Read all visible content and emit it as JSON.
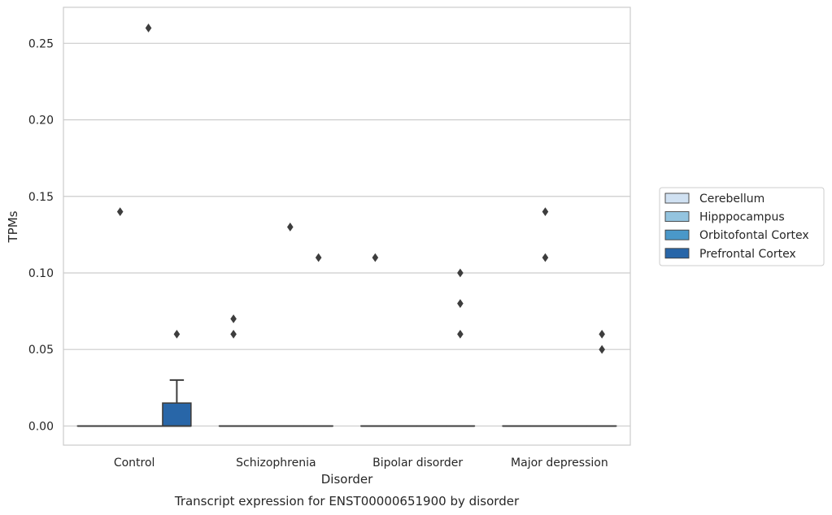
{
  "chart_data": {
    "type": "box",
    "title": "",
    "caption": "Transcript expression for ENST00000651900 by disorder",
    "xlabel": "Disorder",
    "ylabel": "TPMs",
    "ylim": [
      -0.0125,
      0.2735
    ],
    "yticks": [
      0.0,
      0.05,
      0.1,
      0.15,
      0.2,
      0.25
    ],
    "ytick_labels": [
      "0.00",
      "0.05",
      "0.10",
      "0.15",
      "0.20",
      "0.25"
    ],
    "grid": "horizontal",
    "legend_position": "right",
    "categories": [
      "Control",
      "Schizophrenia",
      "Bipolar disorder",
      "Major depression"
    ],
    "series": [
      {
        "name": "Cerebellum",
        "color": "#d0e1f2",
        "boxes": [
          {
            "q1": 0,
            "median": 0,
            "q3": 0,
            "whisker_low": 0,
            "whisker_high": 0,
            "outliers": []
          },
          {
            "q1": 0,
            "median": 0,
            "q3": 0,
            "whisker_low": 0,
            "whisker_high": 0,
            "outliers": [
              0.06,
              0.07
            ]
          },
          {
            "q1": 0,
            "median": 0,
            "q3": 0,
            "whisker_low": 0,
            "whisker_high": 0,
            "outliers": [
              0.11
            ]
          },
          {
            "q1": 0,
            "median": 0,
            "q3": 0,
            "whisker_low": 0,
            "whisker_high": 0,
            "outliers": []
          }
        ]
      },
      {
        "name": "Hipppocampus",
        "color": "#94c4df",
        "boxes": [
          {
            "q1": 0,
            "median": 0,
            "q3": 0,
            "whisker_low": 0,
            "whisker_high": 0,
            "outliers": [
              0.14
            ]
          },
          {
            "q1": 0,
            "median": 0,
            "q3": 0,
            "whisker_low": 0,
            "whisker_high": 0,
            "outliers": []
          },
          {
            "q1": 0,
            "median": 0,
            "q3": 0,
            "whisker_low": 0,
            "whisker_high": 0,
            "outliers": []
          },
          {
            "q1": 0,
            "median": 0,
            "q3": 0,
            "whisker_low": 0,
            "whisker_high": 0,
            "outliers": [
              0.14,
              0.11
            ]
          }
        ]
      },
      {
        "name": "Orbitofontal Cortex",
        "color": "#4a98c9",
        "boxes": [
          {
            "q1": 0,
            "median": 0,
            "q3": 0,
            "whisker_low": 0,
            "whisker_high": 0,
            "outliers": [
              0.26
            ]
          },
          {
            "q1": 0,
            "median": 0,
            "q3": 0,
            "whisker_low": 0,
            "whisker_high": 0,
            "outliers": [
              0.13
            ]
          },
          {
            "q1": 0,
            "median": 0,
            "q3": 0,
            "whisker_low": 0,
            "whisker_high": 0,
            "outliers": []
          },
          {
            "q1": 0,
            "median": 0,
            "q3": 0,
            "whisker_low": 0,
            "whisker_high": 0,
            "outliers": []
          }
        ]
      },
      {
        "name": "Prefrontal Cortex",
        "color": "#2866a8",
        "boxes": [
          {
            "q1": 0,
            "median": 0,
            "q3": 0.015,
            "whisker_low": 0,
            "whisker_high": 0.03,
            "outliers": [
              0.06
            ]
          },
          {
            "q1": 0,
            "median": 0,
            "q3": 0,
            "whisker_low": 0,
            "whisker_high": 0,
            "outliers": [
              0.11
            ]
          },
          {
            "q1": 0,
            "median": 0,
            "q3": 0,
            "whisker_low": 0,
            "whisker_high": 0,
            "outliers": [
              0.1,
              0.08,
              0.06
            ]
          },
          {
            "q1": 0,
            "median": 0,
            "q3": 0,
            "whisker_low": 0,
            "whisker_high": 0,
            "outliers": [
              0.06,
              0.05
            ]
          }
        ]
      }
    ]
  }
}
